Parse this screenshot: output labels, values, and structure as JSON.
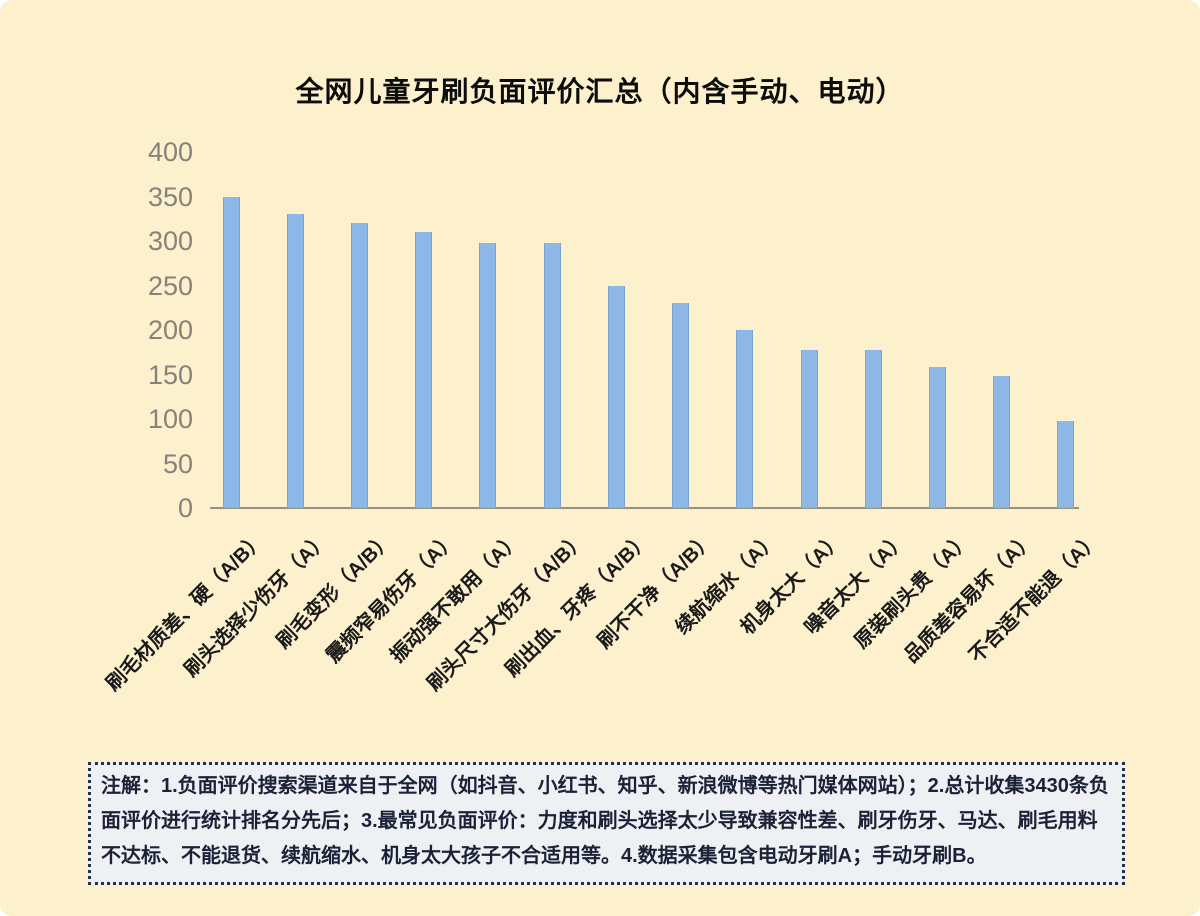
{
  "page": {
    "background_color": "#fdf0cd",
    "note_background_color": "#eef0f4",
    "note_border_color": "#21304f"
  },
  "chart_data": {
    "type": "bar",
    "title": "全网儿童牙刷负面评价汇总（内含手动、电动）",
    "categories": [
      "刷毛材质差、硬（A/B）",
      "刷头选择少伤牙（A）",
      "刷毛变形（A/B）",
      "震频窄易伤牙（A）",
      "振动强不敢用（A）",
      "刷头尺寸大伤牙（A/B）",
      "刷出血、牙疼（A/B）",
      "刷不干净（A/B）",
      "续航缩水（A）",
      "机身太大（A）",
      "噪音太大（A）",
      "原装刷头贵（A）",
      "品质差容易坏（A）",
      "不合适不能退（A）"
    ],
    "values": [
      350,
      330,
      320,
      310,
      298,
      298,
      250,
      230,
      200,
      178,
      178,
      158,
      148,
      98
    ],
    "xlabel": "",
    "ylabel": "",
    "ylim": [
      0,
      400
    ],
    "yticks": [
      0,
      50,
      100,
      150,
      200,
      250,
      300,
      350,
      400
    ],
    "bar_color": "#8db7e6",
    "grid": false,
    "legend_position": "none"
  },
  "note": {
    "text": "注解：1.负面评价搜索渠道来自于全网（如抖音、小红书、知乎、新浪微博等热门媒体网站）；2.总计收集3430条负面评价进行统计排名分先后；3.最常见负面评价：力度和刷头选择太少导致兼容性差、刷牙伤牙、马达、刷毛用料不达标、不能退货、续航缩水、机身太大孩子不合适用等。4.数据采集包含电动牙刷A；手动牙刷B。"
  }
}
